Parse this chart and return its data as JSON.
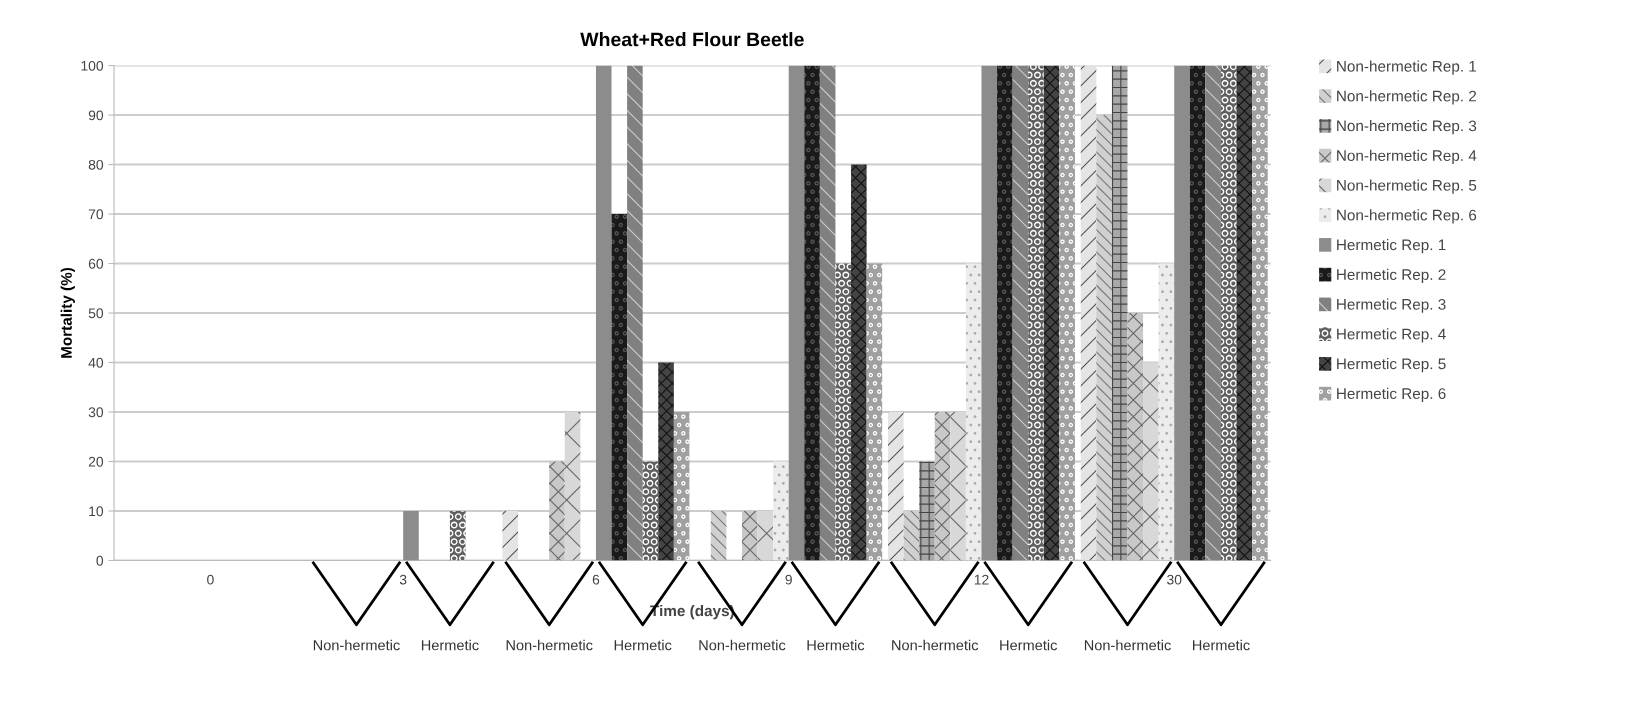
{
  "chart_data": {
    "type": "bar",
    "title": "Wheat+Red Flour Beetle",
    "xlabel": "Time (days)",
    "ylabel": "Mortality (%)",
    "categories": [
      "0",
      "3",
      "6",
      "9",
      "12",
      "30"
    ],
    "series": [
      {
        "name": "Non-hermetic Rep. 1",
        "color": "#e4e4e4",
        "values": [
          0,
          0,
          10,
          0,
          30,
          100
        ]
      },
      {
        "name": "Non-hermetic Rep. 2",
        "color": "#d0d0d0",
        "values": [
          0,
          0,
          0,
          10,
          10,
          90
        ]
      },
      {
        "name": "Non-hermetic Rep. 3",
        "color": "#a8a8a8",
        "values": [
          0,
          0,
          0,
          0,
          20,
          100
        ]
      },
      {
        "name": "Non-hermetic Rep. 4",
        "color": "#c8c8c8",
        "values": [
          0,
          0,
          20,
          10,
          30,
          50
        ]
      },
      {
        "name": "Non-hermetic Rep. 5",
        "color": "#d8d8d8",
        "values": [
          0,
          0,
          30,
          10,
          30,
          40
        ]
      },
      {
        "name": "Non-hermetic Rep. 6",
        "color": "#ececec",
        "values": [
          0,
          0,
          0,
          20,
          60,
          60
        ]
      },
      {
        "name": "Hermetic Rep. 1",
        "color": "#8c8c8c",
        "values": [
          0,
          10,
          100,
          100,
          100,
          100
        ]
      },
      {
        "name": "Hermetic Rep. 2",
        "color": "#1a1a1a",
        "values": [
          0,
          0,
          70,
          100,
          100,
          100
        ]
      },
      {
        "name": "Hermetic Rep. 3",
        "color": "#808080",
        "values": [
          0,
          0,
          100,
          100,
          100,
          100
        ]
      },
      {
        "name": "Hermetic Rep. 4",
        "color": "#606060",
        "values": [
          0,
          10,
          20,
          60,
          100,
          100
        ]
      },
      {
        "name": "Hermetic Rep. 5",
        "color": "#444444",
        "values": [
          0,
          0,
          40,
          80,
          100,
          100
        ]
      },
      {
        "name": "Hermetic Rep. 6",
        "color": "#a0a0a0",
        "values": [
          0,
          0,
          30,
          60,
          100,
          100
        ]
      }
    ],
    "ylim": [
      0,
      100
    ],
    "yticks": [
      0,
      10,
      20,
      30,
      40,
      50,
      60,
      70,
      80,
      90,
      100
    ],
    "grid": "y",
    "legend": "right",
    "annotations": [
      "Non-hermetic",
      "Hermetic",
      "Non-hermetic",
      "Hermetic",
      "Non-hermetic",
      "Hermetic",
      "Non-hermetic",
      "Hermetic",
      "Non-hermetic",
      "Hermetic"
    ]
  }
}
